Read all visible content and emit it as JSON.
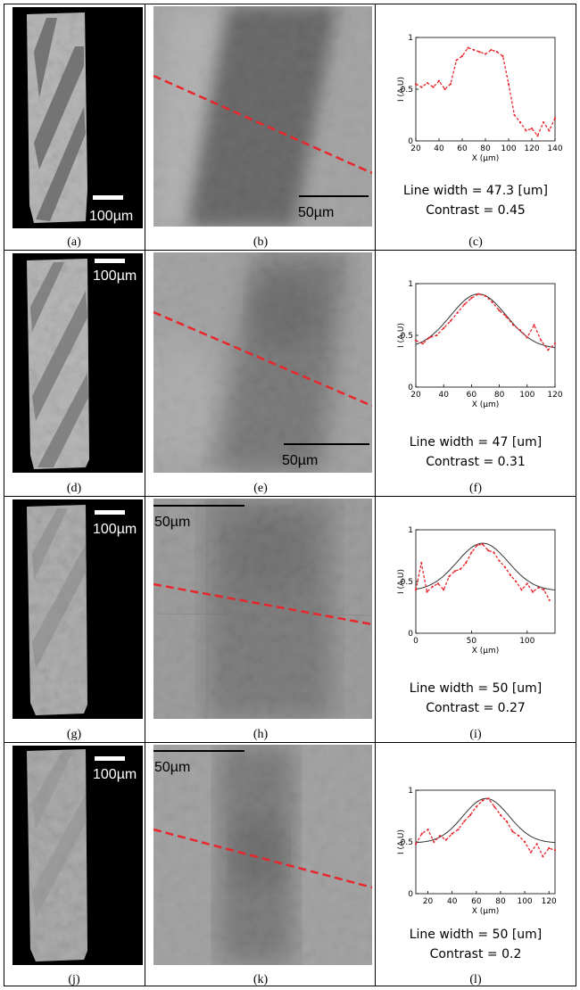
{
  "panel_labels": [
    "(a)",
    "(b)",
    "(c)",
    "(d)",
    "(e)",
    "(f)",
    "(g)",
    "(h)",
    "(i)",
    "(j)",
    "(k)",
    "(l)"
  ],
  "sample_scalebar_label": "100µm",
  "zoom_scalebar_label": "50µm",
  "colors": {
    "profile": "#e8262b",
    "fit": "#333333",
    "line_overlay": "#e8262b"
  },
  "chart_data": [
    {
      "type": "line",
      "xlabel": "X (µm)",
      "ylabel": "I (A.U)",
      "xlim": [
        20,
        140
      ],
      "ylim": [
        0,
        1
      ],
      "xticks": [
        20,
        40,
        60,
        80,
        100,
        120,
        140
      ],
      "yticks": [
        0,
        0.5,
        1
      ],
      "has_fit": false,
      "series": [
        {
          "x": [
            20,
            25,
            30,
            35,
            40,
            45,
            50,
            55,
            60,
            65,
            70,
            75,
            80,
            85,
            90,
            95,
            100,
            105,
            110,
            115,
            120,
            125,
            130,
            135,
            140
          ],
          "y": [
            0.55,
            0.52,
            0.56,
            0.52,
            0.58,
            0.5,
            0.55,
            0.78,
            0.82,
            0.9,
            0.88,
            0.86,
            0.84,
            0.88,
            0.86,
            0.82,
            0.55,
            0.25,
            0.18,
            0.1,
            0.12,
            0.05,
            0.18,
            0.1,
            0.22
          ]
        }
      ],
      "annotation_lines": [
        "Line width = 47.3 [um]",
        "Contrast = 0.45"
      ]
    },
    {
      "type": "line",
      "xlabel": "X (µm)",
      "ylabel": "I (A.U)",
      "xlim": [
        20,
        120
      ],
      "ylim": [
        0,
        1
      ],
      "xticks": [
        20,
        40,
        60,
        80,
        100,
        120
      ],
      "yticks": [
        0,
        0.5,
        1
      ],
      "has_fit": true,
      "fit": {
        "center": 65,
        "sigma": 20,
        "amplitude": 0.53,
        "baseline": 0.37
      },
      "series": [
        {
          "x": [
            20,
            25,
            30,
            35,
            40,
            45,
            50,
            55,
            60,
            65,
            70,
            75,
            80,
            85,
            90,
            95,
            100,
            105,
            110,
            115,
            120
          ],
          "y": [
            0.45,
            0.42,
            0.48,
            0.5,
            0.57,
            0.64,
            0.72,
            0.8,
            0.86,
            0.9,
            0.88,
            0.82,
            0.74,
            0.68,
            0.6,
            0.55,
            0.48,
            0.6,
            0.45,
            0.36,
            0.42
          ]
        }
      ],
      "annotation_lines": [
        "Line width = 47 [um]",
        "Contrast = 0.31"
      ]
    },
    {
      "type": "line",
      "xlabel": "X (µm)",
      "ylabel": "I (A.U)",
      "xlim": [
        0,
        125
      ],
      "ylim": [
        0,
        1
      ],
      "xticks": [
        0,
        50,
        100
      ],
      "yticks": [
        0,
        0.5,
        1
      ],
      "has_fit": true,
      "fit": {
        "center": 60,
        "sigma": 23,
        "amplitude": 0.46,
        "baseline": 0.41
      },
      "series": [
        {
          "x": [
            0,
            5,
            10,
            15,
            20,
            25,
            30,
            35,
            40,
            45,
            50,
            55,
            60,
            65,
            70,
            75,
            80,
            85,
            90,
            95,
            100,
            105,
            110,
            115,
            120
          ],
          "y": [
            0.42,
            0.68,
            0.4,
            0.45,
            0.48,
            0.42,
            0.55,
            0.6,
            0.62,
            0.68,
            0.78,
            0.85,
            0.86,
            0.8,
            0.78,
            0.7,
            0.64,
            0.56,
            0.5,
            0.42,
            0.48,
            0.4,
            0.44,
            0.42,
            0.32
          ]
        }
      ],
      "annotation_lines": [
        "Line width = 50 [um]",
        "Contrast = 0.27"
      ]
    },
    {
      "type": "line",
      "xlabel": "X (µm)",
      "ylabel": "I (A.U)",
      "xlim": [
        10,
        125
      ],
      "ylim": [
        0,
        1
      ],
      "xticks": [
        20,
        40,
        60,
        80,
        100,
        120
      ],
      "yticks": [
        0,
        0.5,
        1
      ],
      "has_fit": true,
      "fit": {
        "center": 68,
        "sigma": 19,
        "amplitude": 0.43,
        "baseline": 0.49
      },
      "series": [
        {
          "x": [
            10,
            15,
            20,
            25,
            30,
            35,
            40,
            45,
            50,
            55,
            60,
            65,
            70,
            75,
            80,
            85,
            90,
            95,
            100,
            105,
            110,
            115,
            120,
            125
          ],
          "y": [
            0.48,
            0.58,
            0.62,
            0.5,
            0.56,
            0.52,
            0.58,
            0.62,
            0.7,
            0.76,
            0.84,
            0.9,
            0.92,
            0.84,
            0.76,
            0.7,
            0.6,
            0.56,
            0.5,
            0.4,
            0.48,
            0.36,
            0.44,
            0.42
          ]
        }
      ],
      "annotation_lines": [
        "Line width = 50 [um]",
        "Contrast = 0.2"
      ]
    }
  ]
}
